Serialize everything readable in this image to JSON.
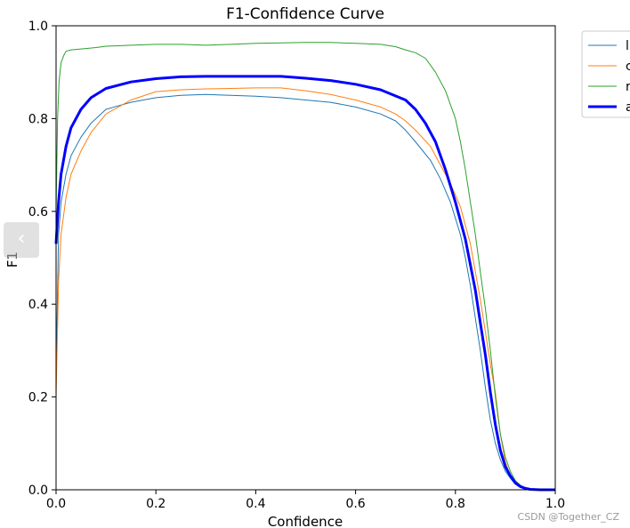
{
  "chart_data": {
    "type": "line",
    "title": "F1-Confidence Curve",
    "xlabel": "Confidence",
    "ylabel": "F1",
    "xlim": [
      0,
      1
    ],
    "ylim": [
      0,
      1
    ],
    "xticks": [
      "0.0",
      "0.2",
      "0.4",
      "0.6",
      "0.8",
      "1.0"
    ],
    "yticks": [
      "0.0",
      "0.2",
      "0.4",
      "0.6",
      "0.8",
      "1.0"
    ],
    "grid": false,
    "legend_position": "outside top-right (partially clipped)",
    "series": [
      {
        "name": "l",
        "color": "#1f77b4",
        "width": 1,
        "x": [
          0,
          0.005,
          0.01,
          0.02,
          0.03,
          0.05,
          0.07,
          0.1,
          0.15,
          0.2,
          0.25,
          0.3,
          0.35,
          0.4,
          0.45,
          0.5,
          0.55,
          0.6,
          0.65,
          0.68,
          0.7,
          0.72,
          0.75,
          0.77,
          0.79,
          0.81,
          0.82,
          0.83,
          0.84,
          0.85,
          0.86,
          0.87,
          0.88,
          0.89,
          0.9,
          0.91,
          0.92,
          0.93,
          0.94,
          0.95,
          0.97,
          1.0
        ],
        "y": [
          0.25,
          0.55,
          0.62,
          0.68,
          0.72,
          0.76,
          0.79,
          0.82,
          0.835,
          0.845,
          0.85,
          0.852,
          0.85,
          0.848,
          0.845,
          0.84,
          0.835,
          0.825,
          0.81,
          0.795,
          0.775,
          0.75,
          0.71,
          0.67,
          0.62,
          0.55,
          0.5,
          0.44,
          0.37,
          0.3,
          0.22,
          0.15,
          0.1,
          0.065,
          0.04,
          0.025,
          0.012,
          0.005,
          0.002,
          0.001,
          0,
          0
        ]
      },
      {
        "name": "c",
        "color": "#ff7f0e",
        "width": 1,
        "x": [
          0,
          0.005,
          0.01,
          0.02,
          0.03,
          0.05,
          0.07,
          0.1,
          0.15,
          0.2,
          0.25,
          0.3,
          0.35,
          0.4,
          0.45,
          0.5,
          0.55,
          0.6,
          0.65,
          0.68,
          0.7,
          0.72,
          0.75,
          0.77,
          0.79,
          0.81,
          0.82,
          0.83,
          0.84,
          0.85,
          0.86,
          0.87,
          0.88,
          0.89,
          0.9,
          0.91,
          0.92,
          0.93,
          0.94,
          0.95,
          0.97,
          1.0
        ],
        "y": [
          0.2,
          0.45,
          0.55,
          0.63,
          0.68,
          0.73,
          0.77,
          0.81,
          0.84,
          0.858,
          0.862,
          0.864,
          0.865,
          0.866,
          0.866,
          0.86,
          0.852,
          0.84,
          0.825,
          0.81,
          0.795,
          0.775,
          0.74,
          0.7,
          0.66,
          0.61,
          0.57,
          0.53,
          0.47,
          0.41,
          0.34,
          0.27,
          0.21,
          0.12,
          0.06,
          0.03,
          0.015,
          0.006,
          0.002,
          0.001,
          0,
          0
        ]
      },
      {
        "name": "r",
        "color": "#2ca02c",
        "width": 1,
        "x": [
          0,
          0.003,
          0.006,
          0.01,
          0.015,
          0.02,
          0.03,
          0.05,
          0.08,
          0.1,
          0.15,
          0.2,
          0.25,
          0.3,
          0.35,
          0.4,
          0.45,
          0.5,
          0.55,
          0.6,
          0.65,
          0.68,
          0.7,
          0.72,
          0.74,
          0.76,
          0.78,
          0.8,
          0.81,
          0.82,
          0.83,
          0.84,
          0.85,
          0.86,
          0.87,
          0.88,
          0.89,
          0.9,
          0.91,
          0.92,
          0.93,
          0.94,
          0.95,
          0.97,
          1.0
        ],
        "y": [
          0.6,
          0.8,
          0.88,
          0.92,
          0.935,
          0.945,
          0.948,
          0.95,
          0.953,
          0.956,
          0.958,
          0.96,
          0.96,
          0.958,
          0.96,
          0.962,
          0.963,
          0.964,
          0.964,
          0.962,
          0.96,
          0.955,
          0.948,
          0.942,
          0.93,
          0.9,
          0.86,
          0.8,
          0.75,
          0.69,
          0.62,
          0.55,
          0.47,
          0.39,
          0.3,
          0.2,
          0.12,
          0.07,
          0.04,
          0.02,
          0.01,
          0.004,
          0.001,
          0,
          0
        ]
      },
      {
        "name": "a",
        "color": "#0000ff",
        "width": 3,
        "x": [
          0,
          0.005,
          0.01,
          0.02,
          0.03,
          0.05,
          0.07,
          0.1,
          0.15,
          0.2,
          0.25,
          0.3,
          0.35,
          0.4,
          0.45,
          0.5,
          0.55,
          0.6,
          0.65,
          0.7,
          0.72,
          0.74,
          0.76,
          0.78,
          0.8,
          0.82,
          0.84,
          0.85,
          0.86,
          0.87,
          0.88,
          0.89,
          0.9,
          0.91,
          0.92,
          0.93,
          0.94,
          0.95,
          0.97,
          1.0
        ],
        "y": [
          0.53,
          0.62,
          0.68,
          0.74,
          0.78,
          0.82,
          0.845,
          0.865,
          0.879,
          0.886,
          0.89,
          0.891,
          0.891,
          0.891,
          0.891,
          0.887,
          0.882,
          0.874,
          0.862,
          0.84,
          0.82,
          0.79,
          0.75,
          0.69,
          0.62,
          0.54,
          0.43,
          0.36,
          0.29,
          0.21,
          0.14,
          0.085,
          0.05,
          0.03,
          0.015,
          0.007,
          0.003,
          0.001,
          0,
          0
        ]
      }
    ]
  },
  "watermark": "CSDN @Together_CZ",
  "nav": {
    "arrow": "‹"
  }
}
